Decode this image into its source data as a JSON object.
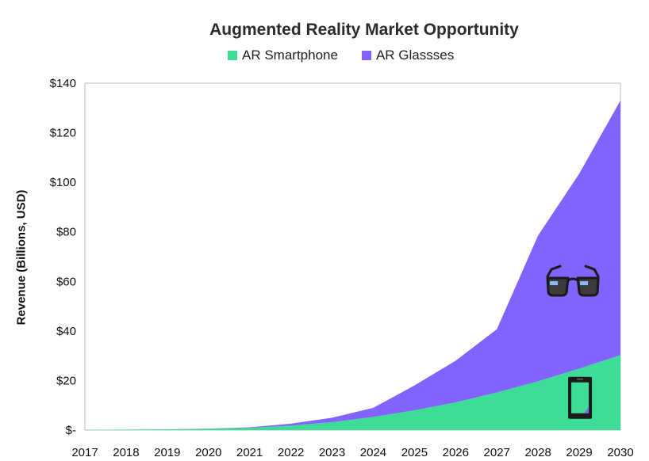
{
  "chart_data": {
    "type": "area",
    "stacked": true,
    "title": "Augmented Reality Market Opportunity",
    "xlabel": "",
    "ylabel": "Revenue (Billions, USD)",
    "x": [
      "2017",
      "2018",
      "2019",
      "2020",
      "2021",
      "2022",
      "2023",
      "2024",
      "2025",
      "2026",
      "2027",
      "2028",
      "2029",
      "2030"
    ],
    "ylim": [
      0,
      140
    ],
    "yticks": [
      0,
      20,
      40,
      60,
      80,
      100,
      120,
      140
    ],
    "ytick_labels": [
      "$-",
      "$20",
      "$40",
      "$60",
      "$80",
      "$100",
      "$120",
      "$140"
    ],
    "legend_position": "top",
    "grid": false,
    "series": [
      {
        "name": "AR Smartphone",
        "color": "#3ddc97",
        "values": [
          0.1,
          0.2,
          0.3,
          0.5,
          0.9,
          1.8,
          3.2,
          5.3,
          8.0,
          11.2,
          15.2,
          19.7,
          24.8,
          30.3
        ]
      },
      {
        "name": "AR Glassses",
        "color": "#8363ff",
        "values": [
          0,
          0,
          0,
          0.1,
          0.2,
          0.8,
          1.8,
          3.7,
          10.0,
          16.8,
          25.5,
          58.8,
          78.7,
          102.7
        ]
      }
    ],
    "annotations": [
      {
        "icon": "glasses-icon",
        "series": "AR Glassses"
      },
      {
        "icon": "smartphone-icon",
        "series": "AR Smartphone"
      }
    ]
  }
}
